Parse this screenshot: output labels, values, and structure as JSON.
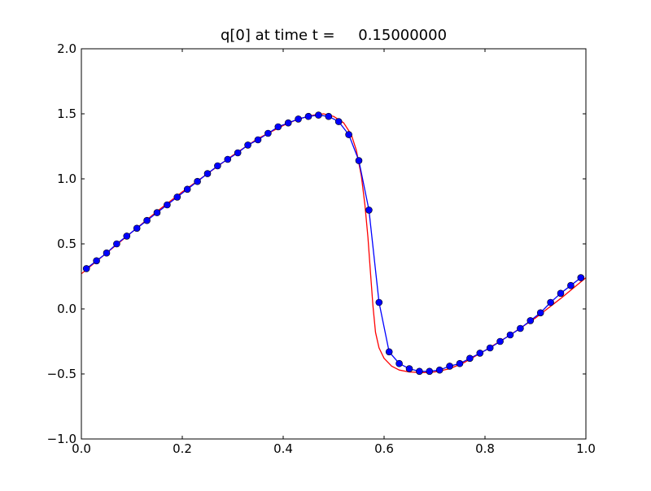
{
  "chart_data": {
    "type": "line",
    "title": "q[0] at time t =     0.15000000",
    "xlabel": "",
    "ylabel": "",
    "xlim": [
      0.0,
      1.0
    ],
    "ylim": [
      -1.0,
      2.0
    ],
    "grid": false,
    "x_ticks": [
      0.0,
      0.2,
      0.4,
      0.6,
      0.8,
      1.0
    ],
    "x_tick_labels": [
      "0.0",
      "0.2",
      "0.4",
      "0.6",
      "0.8",
      "1.0"
    ],
    "y_ticks": [
      -1.0,
      -0.5,
      0.0,
      0.5,
      1.0,
      1.5,
      2.0
    ],
    "y_tick_labels": [
      "−1.0",
      "−0.5",
      "0.0",
      "0.5",
      "1.0",
      "1.5",
      "2.0"
    ],
    "series": [
      {
        "style": "line-with-markers",
        "color": "#0000ff",
        "x": [
          0.01,
          0.03,
          0.05,
          0.07,
          0.09,
          0.11,
          0.13,
          0.15,
          0.17,
          0.19,
          0.21,
          0.23,
          0.25,
          0.27,
          0.29,
          0.31,
          0.33,
          0.35,
          0.37,
          0.39,
          0.41,
          0.43,
          0.45,
          0.47,
          0.49,
          0.51,
          0.53,
          0.55,
          0.57,
          0.59,
          0.61,
          0.63,
          0.65,
          0.67,
          0.69,
          0.71,
          0.73,
          0.75,
          0.77,
          0.79,
          0.81,
          0.83,
          0.85,
          0.87,
          0.89,
          0.91,
          0.93,
          0.95,
          0.97,
          0.99
        ],
        "y": [
          0.31,
          0.37,
          0.43,
          0.5,
          0.56,
          0.62,
          0.68,
          0.74,
          0.8,
          0.86,
          0.92,
          0.98,
          1.04,
          1.1,
          1.15,
          1.2,
          1.26,
          1.3,
          1.35,
          1.4,
          1.43,
          1.46,
          1.48,
          1.49,
          1.48,
          1.44,
          1.34,
          1.14,
          0.76,
          0.05,
          -0.33,
          -0.42,
          -0.46,
          -0.48,
          -0.48,
          -0.47,
          -0.44,
          -0.42,
          -0.38,
          -0.34,
          -0.3,
          -0.25,
          -0.2,
          -0.15,
          -0.09,
          -0.03,
          0.05,
          0.12,
          0.18,
          0.24
        ]
      },
      {
        "style": "line",
        "color": "#ff0000",
        "x": [
          0.0,
          0.05,
          0.1,
          0.15,
          0.2,
          0.25,
          0.3,
          0.35,
          0.4,
          0.43,
          0.46,
          0.48,
          0.5,
          0.52,
          0.535,
          0.545,
          0.555,
          0.562,
          0.568,
          0.573,
          0.578,
          0.583,
          0.59,
          0.6,
          0.615,
          0.63,
          0.65,
          0.68,
          0.7,
          0.73,
          0.76,
          0.8,
          0.85,
          0.9,
          0.95,
          1.0
        ],
        "y": [
          0.27,
          0.43,
          0.59,
          0.75,
          0.9,
          1.04,
          1.18,
          1.31,
          1.41,
          1.46,
          1.49,
          1.5,
          1.48,
          1.43,
          1.34,
          1.22,
          1.02,
          0.8,
          0.55,
          0.28,
          0.02,
          -0.18,
          -0.3,
          -0.38,
          -0.44,
          -0.47,
          -0.485,
          -0.49,
          -0.485,
          -0.46,
          -0.41,
          -0.32,
          -0.2,
          -0.07,
          0.08,
          0.24
        ]
      }
    ]
  }
}
